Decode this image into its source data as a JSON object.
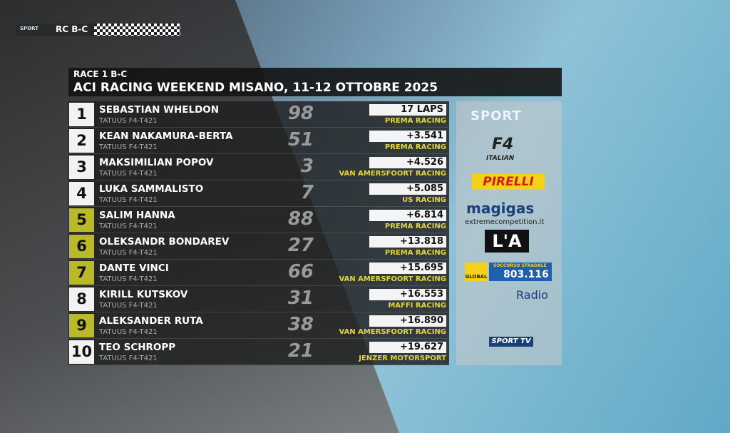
{
  "bug": {
    "brand": "SPORT",
    "label": "RC B-C"
  },
  "header": {
    "subtitle": "RACE 1 B-C",
    "title": "ACI RACING WEEKEND MISANO, 11-12 OTTOBRE 2025"
  },
  "table": {
    "rows": [
      {
        "position": "1",
        "name": "SEBASTIAN WHELDON",
        "car": "TATUUS F4-T421",
        "number": "98",
        "gap": "17 LAPS",
        "team": "PREMA RACING"
      },
      {
        "position": "2",
        "name": "KEAN NAKAMURA-BERTA",
        "car": "TATUUS F4-T421",
        "number": "51",
        "gap": "+3.541",
        "team": "PREMA RACING"
      },
      {
        "position": "3",
        "name": "MAKSIMILIAN POPOV",
        "car": "TATUUS F4-T421",
        "number": "3",
        "gap": "+4.526",
        "team": "VAN AMERSFOORT RACING"
      },
      {
        "position": "4",
        "name": "LUKA SAMMALISTO",
        "car": "TATUUS F4-T421",
        "number": "7",
        "gap": "+5.085",
        "team": "US RACING"
      },
      {
        "position": "5",
        "name": "SALIM HANNA",
        "car": "TATUUS F4-T421",
        "number": "88",
        "gap": "+6.814",
        "team": "PREMA RACING"
      },
      {
        "position": "6",
        "name": "OLEKSANDR BONDAREV",
        "car": "TATUUS F4-T421",
        "number": "27",
        "gap": "+13.818",
        "team": "PREMA RACING"
      },
      {
        "position": "7",
        "name": "DANTE VINCI",
        "car": "TATUUS F4-T421",
        "number": "66",
        "gap": "+15.695",
        "team": "VAN AMERSFOORT RACING"
      },
      {
        "position": "8",
        "name": "KIRILL KUTSKOV",
        "car": "TATUUS F4-T421",
        "number": "31",
        "gap": "+16.553",
        "team": "MAFFI RACING"
      },
      {
        "position": "9",
        "name": "ALEKSANDER RUTA",
        "car": "TATUUS F4-T421",
        "number": "38",
        "gap": "+16.890",
        "team": "VAN AMERSFOORT RACING"
      },
      {
        "position": "10",
        "name": "TEO SCHROPP",
        "car": "TATUUS F4-T421",
        "number": "21",
        "gap": "+19.627",
        "team": "JENZER MOTORSPORT"
      }
    ]
  },
  "sponsors": {
    "aci_sport": "SPORT",
    "f4": "F4",
    "f4_sub": "ITALIAN",
    "pirelli": "PIRELLI",
    "magigas": "magigas",
    "extreme": "extremecompetition.it",
    "automobile": "L'A",
    "aci_global": "GLOBAL",
    "soccorso": "SOCCORSO STRADALE",
    "phone": "803.116",
    "radio": "Radio",
    "sporttv": "SPORT TV"
  }
}
